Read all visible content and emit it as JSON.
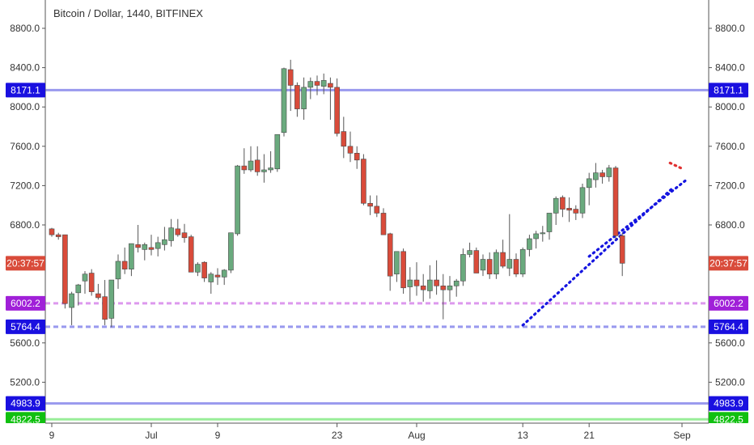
{
  "chart_data": {
    "type": "candlestick",
    "title": "Bitcoin / Dollar, 1440, BITFINEX",
    "ylim": [
      4800,
      9000
    ],
    "y_ticks": [
      5200,
      5600,
      6000,
      6400,
      6800,
      7200,
      7600,
      8000,
      8400,
      8800
    ],
    "y_tick_labels": [
      "5200.0",
      "5600.0",
      "6000.0",
      "6400.0",
      "6800.0",
      "7200.0",
      "7600.0",
      "8000.0",
      "8400.0",
      "8800.0"
    ],
    "x_ticks": [
      {
        "index": 0,
        "label": "9"
      },
      {
        "index": 15,
        "label": "Jul"
      },
      {
        "index": 25,
        "label": "9"
      },
      {
        "index": 43,
        "label": "23"
      },
      {
        "index": 55,
        "label": "Aug"
      },
      {
        "index": 71,
        "label": "13"
      },
      {
        "index": 81,
        "label": "21"
      },
      {
        "index": 95,
        "label": "Sep"
      }
    ],
    "candles": [
      [
        6760,
        6770,
        6680,
        6700
      ],
      [
        6700,
        6720,
        6650,
        6680
      ],
      [
        6700,
        6700,
        5950,
        6000
      ],
      [
        5960,
        6120,
        5780,
        6100
      ],
      [
        6110,
        6200,
        5980,
        6190
      ],
      [
        6230,
        6330,
        6100,
        6300
      ],
      [
        6310,
        6350,
        6080,
        6120
      ],
      [
        6100,
        6200,
        6040,
        6060
      ],
      [
        6070,
        6240,
        5780,
        5840
      ],
      [
        5850,
        6230,
        5760,
        6240
      ],
      [
        6250,
        6500,
        6150,
        6430
      ],
      [
        6430,
        6570,
        6300,
        6350
      ],
      [
        6350,
        6610,
        6280,
        6610
      ],
      [
        6600,
        6800,
        6520,
        6570
      ],
      [
        6550,
        6620,
        6440,
        6600
      ],
      [
        6570,
        6700,
        6490,
        6550
      ],
      [
        6560,
        6680,
        6480,
        6620
      ],
      [
        6600,
        6780,
        6540,
        6650
      ],
      [
        6640,
        6860,
        6580,
        6770
      ],
      [
        6760,
        6860,
        6680,
        6700
      ],
      [
        6720,
        6810,
        6620,
        6670
      ],
      [
        6680,
        6700,
        6320,
        6320
      ],
      [
        6320,
        6420,
        6280,
        6400
      ],
      [
        6420,
        6430,
        6220,
        6260
      ],
      [
        6220,
        6320,
        6100,
        6300
      ],
      [
        6290,
        6360,
        6190,
        6270
      ],
      [
        6270,
        6350,
        6190,
        6340
      ],
      [
        6340,
        6710,
        6310,
        6720
      ],
      [
        6710,
        7410,
        6690,
        7400
      ],
      [
        7400,
        7580,
        7320,
        7360
      ],
      [
        7360,
        7600,
        7340,
        7450
      ],
      [
        7460,
        7600,
        7300,
        7340
      ],
      [
        7340,
        7520,
        7230,
        7360
      ],
      [
        7360,
        7550,
        7330,
        7380
      ],
      [
        7370,
        7720,
        7340,
        7720
      ],
      [
        7740,
        8400,
        7700,
        8390
      ],
      [
        8380,
        8480,
        7960,
        8220
      ],
      [
        8220,
        8250,
        7900,
        7980
      ],
      [
        7980,
        8300,
        7870,
        8200
      ],
      [
        8200,
        8300,
        8080,
        8260
      ],
      [
        8260,
        8320,
        8120,
        8220
      ],
      [
        8210,
        8340,
        8130,
        8270
      ],
      [
        8240,
        8300,
        7870,
        8200
      ],
      [
        8200,
        8290,
        7700,
        7730
      ],
      [
        7750,
        7900,
        7480,
        7600
      ],
      [
        7600,
        7750,
        7440,
        7530
      ],
      [
        7530,
        7600,
        7370,
        7460
      ],
      [
        7470,
        7520,
        7000,
        7020
      ],
      [
        7020,
        7100,
        6900,
        6990
      ],
      [
        6990,
        7100,
        6880,
        6920
      ],
      [
        6920,
        6970,
        6720,
        6700
      ],
      [
        6710,
        6720,
        6130,
        6280
      ],
      [
        6300,
        6530,
        6220,
        6530
      ],
      [
        6530,
        6560,
        6100,
        6160
      ],
      [
        6170,
        6370,
        6020,
        6240
      ],
      [
        6240,
        6420,
        6080,
        6180
      ],
      [
        6180,
        6300,
        6020,
        6140
      ],
      [
        6130,
        6390,
        6050,
        6240
      ],
      [
        6240,
        6440,
        6090,
        6180
      ],
      [
        6180,
        6300,
        5840,
        6140
      ],
      [
        6140,
        6280,
        6020,
        6180
      ],
      [
        6180,
        6250,
        6070,
        6230
      ],
      [
        6230,
        6560,
        6180,
        6500
      ],
      [
        6500,
        6620,
        6470,
        6540
      ],
      [
        6540,
        6570,
        6320,
        6310
      ],
      [
        6340,
        6500,
        6280,
        6450
      ],
      [
        6450,
        6520,
        6250,
        6300
      ],
      [
        6300,
        6550,
        6250,
        6520
      ],
      [
        6520,
        6650,
        6360,
        6380
      ],
      [
        6360,
        6910,
        6280,
        6450
      ],
      [
        6450,
        6510,
        6270,
        6300
      ],
      [
        6300,
        6570,
        6270,
        6550
      ],
      [
        6550,
        6700,
        6480,
        6660
      ],
      [
        6660,
        6740,
        6560,
        6710
      ],
      [
        6710,
        6790,
        6630,
        6720
      ],
      [
        6730,
        6920,
        6650,
        6920
      ],
      [
        6920,
        7090,
        6800,
        7070
      ],
      [
        7080,
        7100,
        6880,
        6960
      ],
      [
        6970,
        7080,
        6830,
        6950
      ],
      [
        6960,
        7000,
        6850,
        6920
      ],
      [
        6920,
        7220,
        6870,
        7180
      ],
      [
        7180,
        7330,
        7000,
        7270
      ],
      [
        7260,
        7430,
        7180,
        7330
      ],
      [
        7330,
        7360,
        7220,
        7290
      ],
      [
        7290,
        7410,
        7240,
        7380
      ],
      [
        7380,
        7400,
        6650,
        6690
      ],
      [
        6690,
        6720,
        6280,
        6410
      ]
    ],
    "horizontal_levels": [
      {
        "label": "8171.1",
        "value": 8171.1,
        "color": "#9999ee",
        "style": "solid",
        "box_color": "#1a10e0"
      },
      {
        "label": "6002.2",
        "value": 6002.2,
        "color": "#dd99ee",
        "style": "dashed",
        "box_color": "#a020d8"
      },
      {
        "label": "5764.4",
        "value": 5764.4,
        "color": "#9999ee",
        "style": "dashed",
        "box_color": "#1a10e0"
      },
      {
        "label": "4983.9",
        "value": 4983.9,
        "color": "#9999ee",
        "style": "solid",
        "box_color": "#1a10e0"
      },
      {
        "label": "4822.5",
        "value": 4822.5,
        "color": "#99ee99",
        "style": "solid",
        "box_color": "#10c010"
      }
    ],
    "current_label": {
      "text": "20:37:57",
      "value": 6410,
      "box_color": "#d94b3a"
    },
    "trendlines": [
      {
        "from": [
          71.0,
          5780
        ],
        "to": [
          93.5,
          7170
        ],
        "color": "#1515e0"
      },
      {
        "from": [
          81.0,
          6480
        ],
        "to": [
          95.5,
          7250
        ],
        "color": "#1515e0"
      },
      {
        "from": [
          93.2,
          7430
        ],
        "to": [
          94.8,
          7380
        ],
        "color": "#e03030"
      }
    ],
    "up_color": "#6aaa7e",
    "down_color": "#d94b3a",
    "grid": false
  }
}
